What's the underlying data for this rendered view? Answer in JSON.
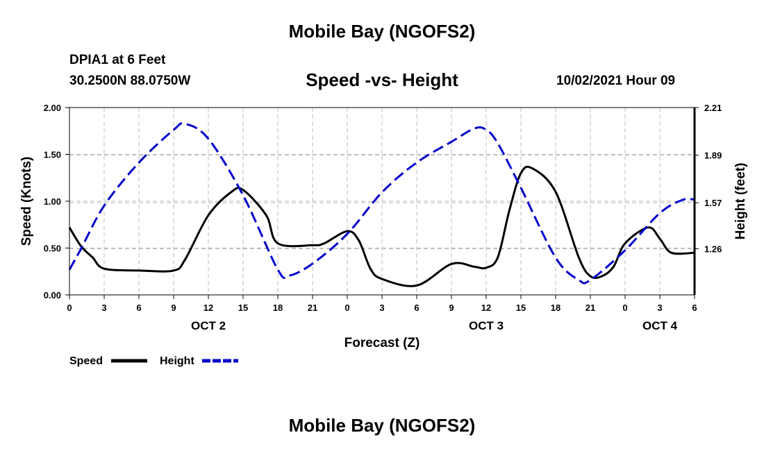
{
  "header": {
    "title": "Mobile Bay (NGOFS2)",
    "station": "DPIA1 at 6 Feet",
    "coordinates": "30.2500N  88.0750W",
    "subtitle": "Speed -vs- Height",
    "datetime": "10/02/2021 Hour 09",
    "footer_title": "Mobile Bay (NGOFS2)"
  },
  "chart_data": {
    "type": "line",
    "title": "Speed -vs- Height",
    "xlabel": "Forecast (Z)",
    "ylabel_left": "Speed (Knots)",
    "ylabel_right": "Height (feet)",
    "x_range": [
      0,
      54
    ],
    "x_tick_values": [
      0,
      3,
      6,
      9,
      12,
      15,
      18,
      21,
      24,
      27,
      30,
      33,
      36,
      39,
      42,
      45,
      48,
      51,
      54
    ],
    "x_tick_labels": [
      "0",
      "3",
      "6",
      "9",
      "12",
      "15",
      "18",
      "21",
      "0",
      "3",
      "6",
      "9",
      "12",
      "15",
      "18",
      "21",
      "0",
      "3",
      "6"
    ],
    "date_labels": [
      {
        "label": "OCT 2",
        "x": 12
      },
      {
        "label": "OCT 3",
        "x": 36
      },
      {
        "label": "OCT 4",
        "x": 51
      }
    ],
    "ylim_left": [
      0,
      2.0
    ],
    "y_left_ticks": [
      0,
      0.5,
      1.0,
      1.5,
      2.0
    ],
    "y_left_tick_labels": [
      "0.00",
      "0.50",
      "1.00",
      "1.50",
      "2.00"
    ],
    "ylim_right": [
      0.95,
      2.21
    ],
    "y_right_ticks": [
      1.26,
      1.57,
      1.89,
      2.21
    ],
    "y_right_tick_labels": [
      "1.26",
      "1.57",
      "1.89",
      "2.21"
    ],
    "grid": true,
    "series": [
      {
        "name": "Speed",
        "axis": "left",
        "color": "#000000",
        "dash": "solid",
        "x": [
          0,
          1,
          2,
          3,
          6,
          9,
          10,
          12,
          14,
          15,
          17,
          18,
          21,
          22,
          24,
          25,
          26,
          27,
          30,
          33,
          35,
          36,
          37,
          38,
          39,
          40,
          42,
          44,
          45,
          46,
          47,
          48,
          50,
          51,
          52,
          54
        ],
        "y": [
          0.72,
          0.52,
          0.4,
          0.28,
          0.26,
          0.26,
          0.38,
          0.85,
          1.1,
          1.12,
          0.85,
          0.55,
          0.53,
          0.55,
          0.68,
          0.58,
          0.28,
          0.17,
          0.1,
          0.33,
          0.3,
          0.29,
          0.4,
          0.9,
          1.3,
          1.35,
          1.1,
          0.4,
          0.2,
          0.2,
          0.3,
          0.55,
          0.72,
          0.6,
          0.45,
          0.45
        ]
      },
      {
        "name": "Height",
        "axis": "right",
        "color": "#0000cc",
        "dash": "dashed",
        "x": [
          0,
          1,
          3,
          6,
          9,
          10,
          12,
          15,
          18,
          19,
          21,
          24,
          27,
          30,
          33,
          35,
          36,
          37,
          39,
          42,
          44,
          45,
          48,
          51,
          53,
          54
        ],
        "y": [
          1.12,
          1.26,
          1.55,
          1.84,
          2.06,
          2.1,
          2.0,
          1.62,
          1.12,
          1.08,
          1.16,
          1.36,
          1.64,
          1.84,
          1.98,
          2.07,
          2.06,
          1.97,
          1.67,
          1.2,
          1.05,
          1.05,
          1.25,
          1.5,
          1.59,
          1.59
        ]
      }
    ],
    "legend": [
      {
        "label": "Speed",
        "color": "#000000",
        "dash": "solid"
      },
      {
        "label": "Height",
        "color": "#0000cc",
        "dash": "dashed"
      }
    ],
    "legend_position": "bottom-left"
  }
}
